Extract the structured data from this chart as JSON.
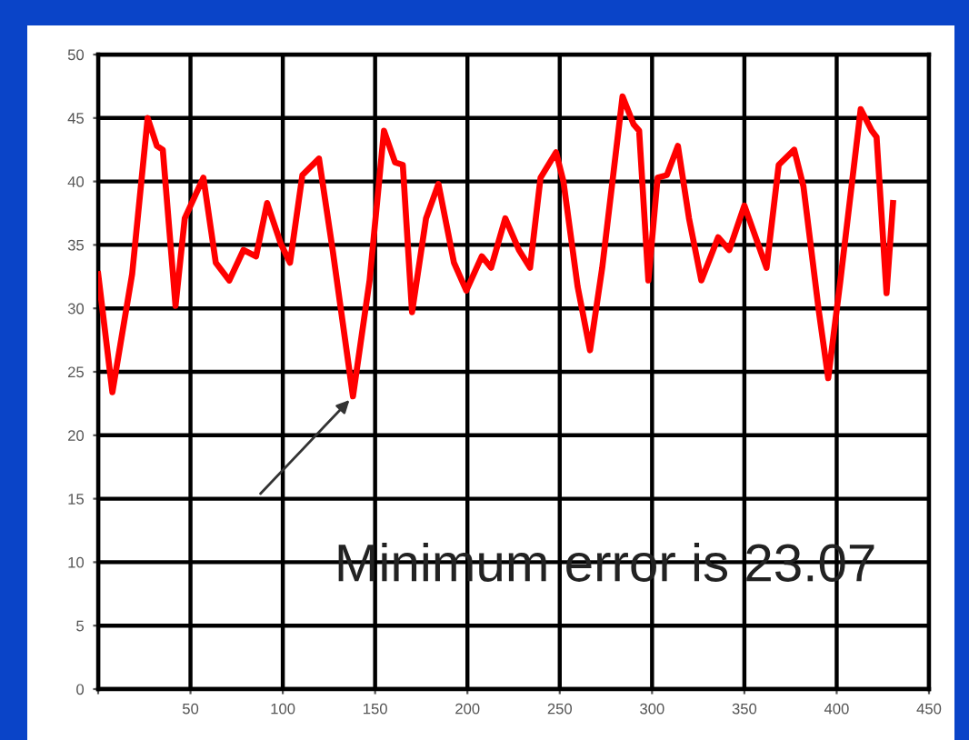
{
  "chart_data": {
    "type": "line",
    "x": [
      0,
      7.7,
      18.4,
      26.8,
      31.8,
      35,
      41.9,
      46.9,
      57,
      63.7,
      71,
      78.7,
      85.5,
      91.5,
      98.9,
      103.9,
      110.6,
      119.6,
      127,
      138,
      147,
      154.8,
      160.8,
      165,
      170,
      177.6,
      184.3,
      192.7,
      199.4,
      207.8,
      212.8,
      220.5,
      227.9,
      233.9,
      239.6,
      248,
      252,
      259.7,
      266.4,
      273,
      284,
      290,
      293,
      298,
      303,
      308,
      314,
      320,
      326.7,
      335.8,
      341.8,
      350,
      362,
      368.6,
      377,
      382,
      390.4,
      395.4,
      402,
      413,
      419,
      421.6,
      427,
      430.5
    ],
    "series": [
      {
        "color": "#ff0000",
        "values": [
          32.7,
          23.4,
          32.7,
          45,
          42.8,
          42.5,
          30.2,
          37.1,
          40.3,
          33.6,
          32.2,
          34.6,
          34.1,
          38.3,
          35.1,
          33.6,
          40.5,
          41.8,
          34.6,
          23.07,
          32.2,
          44,
          41.5,
          41.3,
          29.7,
          37.1,
          39.8,
          33.6,
          31.4,
          34.1,
          33.2,
          37.1,
          34.6,
          33.2,
          40.3,
          42.3,
          40,
          31.7,
          26.7,
          33.2,
          46.7,
          44.5,
          44,
          32.2,
          40.3,
          40.5,
          42.8,
          37.1,
          32.2,
          35.6,
          34.6,
          38.1,
          33.2,
          41.3,
          42.5,
          39.6,
          29.7,
          24.5,
          32.2,
          45.7,
          44,
          43.5,
          31.2,
          38.3
        ]
      }
    ],
    "xlim": [
      0,
      450
    ],
    "ylim": [
      0,
      50
    ],
    "xticks": [
      {
        "value": 0,
        "label": null
      },
      50,
      100,
      150,
      200,
      250,
      300,
      350,
      400,
      450
    ],
    "yticks": [
      0,
      5,
      10,
      15,
      20,
      25,
      30,
      35,
      40,
      45,
      50
    ],
    "grid": true,
    "annotations": [
      {
        "text": "Minimum error is 23.07",
        "x": 138,
        "y": 23.07
      }
    ]
  }
}
